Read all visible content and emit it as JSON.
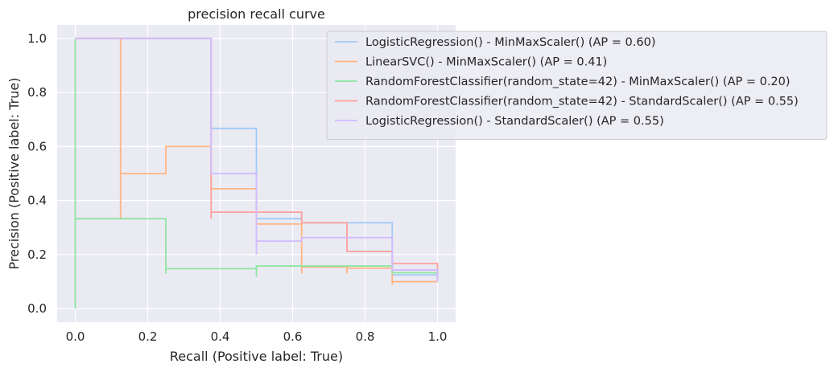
{
  "chart_data": {
    "type": "line",
    "drawstyle": "steps-post",
    "title": "precision recall curve",
    "xlabel": "Recall (Positive label: True)",
    "ylabel": "Precision (Positive label: True)",
    "xlim": [
      -0.05,
      1.05
    ],
    "ylim": [
      -0.05,
      1.05
    ],
    "xticks": [
      0.0,
      0.2,
      0.4,
      0.6,
      0.8,
      1.0
    ],
    "xtick_labels": [
      "0.0",
      "0.2",
      "0.4",
      "0.6",
      "0.8",
      "1.0"
    ],
    "yticks": [
      0.0,
      0.2,
      0.4,
      0.6,
      0.8,
      1.0
    ],
    "ytick_labels": [
      "0.0",
      "0.2",
      "0.4",
      "0.6",
      "0.8",
      "1.0"
    ],
    "grid": true,
    "legend_position": "upper-right",
    "background_color": "#eaeaf2",
    "series": [
      {
        "name": "LogisticRegression() - MinMaxScaler() (AP = 0.60)",
        "color": "#a1c9f4",
        "points": [
          [
            0.0,
            1.0
          ],
          [
            0.375,
            1.0
          ],
          [
            0.375,
            0.667
          ],
          [
            0.5,
            0.667
          ],
          [
            0.5,
            0.333
          ],
          [
            0.625,
            0.333
          ],
          [
            0.625,
            0.318
          ],
          [
            0.875,
            0.318
          ],
          [
            0.875,
            0.125
          ],
          [
            1.0,
            0.125
          ],
          [
            1.0,
            0.1
          ]
        ]
      },
      {
        "name": "LinearSVC() - MinMaxScaler() (AP = 0.41)",
        "color": "#ffb482",
        "points": [
          [
            0.0,
            1.0
          ],
          [
            0.125,
            1.0
          ],
          [
            0.125,
            0.333
          ],
          [
            0.125,
            0.5
          ],
          [
            0.25,
            0.5
          ],
          [
            0.25,
            0.6
          ],
          [
            0.375,
            0.6
          ],
          [
            0.375,
            0.444
          ],
          [
            0.5,
            0.444
          ],
          [
            0.5,
            0.313
          ],
          [
            0.625,
            0.313
          ],
          [
            0.625,
            0.13
          ],
          [
            0.625,
            0.154
          ],
          [
            0.75,
            0.154
          ],
          [
            0.75,
            0.13
          ],
          [
            0.75,
            0.15
          ],
          [
            0.875,
            0.15
          ],
          [
            0.875,
            0.088
          ],
          [
            0.875,
            0.1
          ],
          [
            1.0,
            0.1
          ]
        ]
      },
      {
        "name": "RandomForestClassifier(random_state=42) - MinMaxScaler() (AP = 0.20)",
        "color": "#8de5a1",
        "points": [
          [
            0.0,
            0.0
          ],
          [
            0.0,
            1.0
          ],
          [
            0.0,
            0.333
          ],
          [
            0.25,
            0.333
          ],
          [
            0.25,
            0.13
          ],
          [
            0.25,
            0.148
          ],
          [
            0.5,
            0.148
          ],
          [
            0.5,
            0.118
          ],
          [
            0.5,
            0.158
          ],
          [
            0.875,
            0.158
          ],
          [
            0.875,
            0.133
          ],
          [
            1.0,
            0.133
          ]
        ]
      },
      {
        "name": "RandomForestClassifier(random_state=42) - StandardScaler() (AP = 0.55)",
        "color": "#ff9f9b",
        "points": [
          [
            0.0,
            1.0
          ],
          [
            0.375,
            1.0
          ],
          [
            0.375,
            0.333
          ],
          [
            0.375,
            0.357
          ],
          [
            0.625,
            0.357
          ],
          [
            0.625,
            0.318
          ],
          [
            0.75,
            0.318
          ],
          [
            0.75,
            0.212
          ],
          [
            0.875,
            0.212
          ],
          [
            0.875,
            0.167
          ],
          [
            1.0,
            0.167
          ],
          [
            1.0,
            0.11
          ]
        ]
      },
      {
        "name": "LogisticRegression() - StandardScaler() (AP = 0.55)",
        "color": "#d0bbff",
        "points": [
          [
            0.0,
            1.0
          ],
          [
            0.375,
            1.0
          ],
          [
            0.375,
            0.5
          ],
          [
            0.5,
            0.5
          ],
          [
            0.5,
            0.2
          ],
          [
            0.5,
            0.25
          ],
          [
            0.625,
            0.25
          ],
          [
            0.625,
            0.263
          ],
          [
            0.875,
            0.263
          ],
          [
            0.875,
            0.143
          ],
          [
            1.0,
            0.143
          ],
          [
            1.0,
            0.1
          ]
        ]
      }
    ]
  }
}
